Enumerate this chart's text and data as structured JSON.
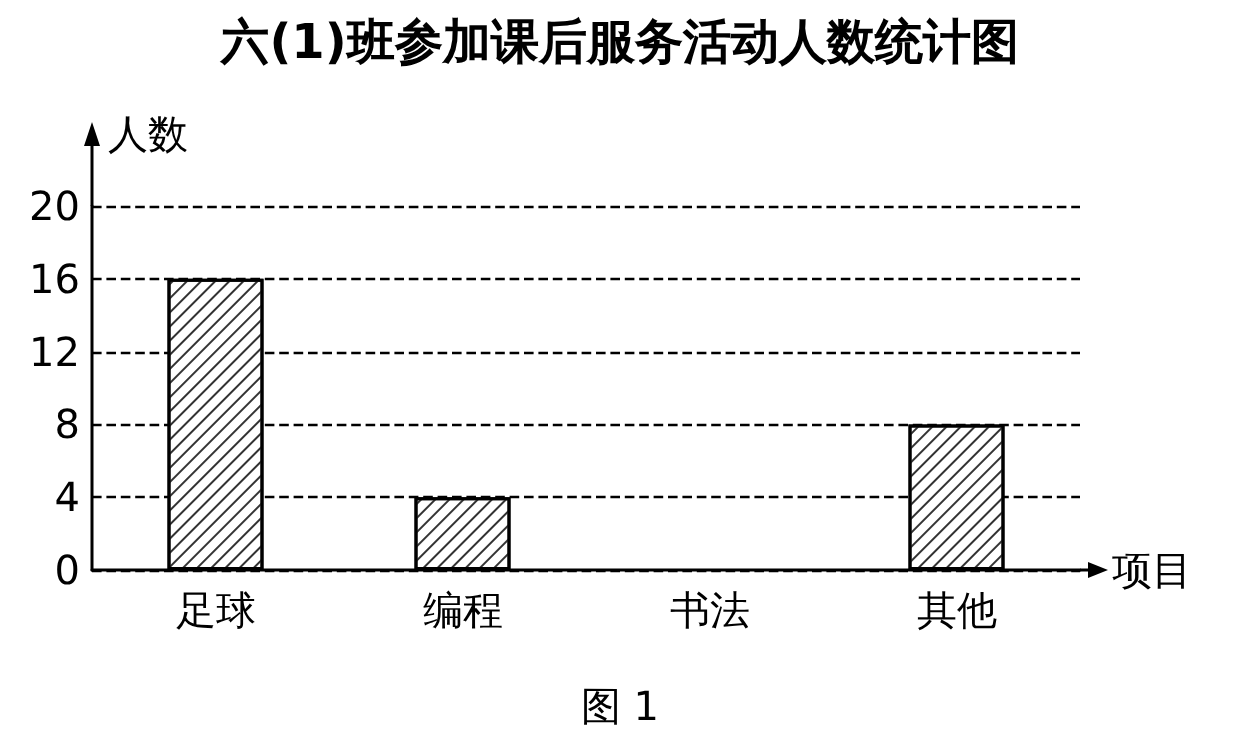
{
  "chart_data": {
    "type": "bar",
    "title": "六(1)班参加课后服务活动人数统计图",
    "xlabel": "项目",
    "ylabel": "人数",
    "annotations": [
      "图 1"
    ],
    "categories": [
      "足球",
      "编程",
      "书法",
      "其他"
    ],
    "values": [
      16,
      4,
      null,
      8
    ],
    "color": "#ffffff",
    "ylim": [
      0,
      20
    ],
    "yticks": [
      0,
      4,
      8,
      12,
      16,
      20
    ],
    "grid": "y",
    "line_style": "dashed"
  }
}
